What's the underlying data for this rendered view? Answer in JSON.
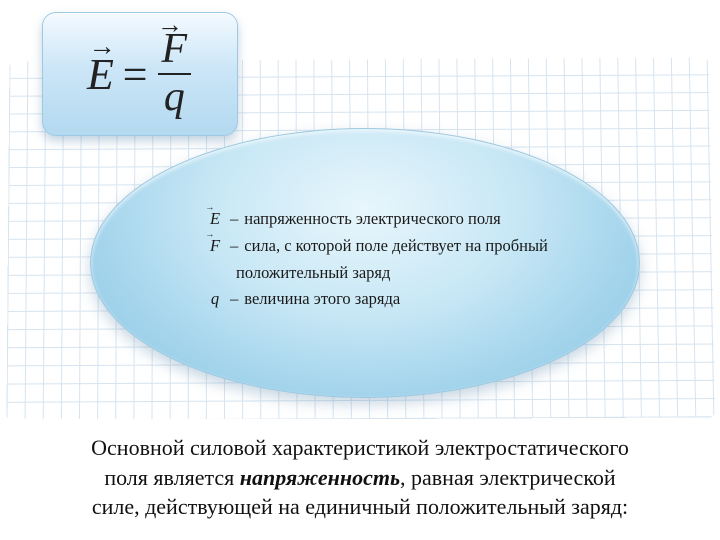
{
  "formula": {
    "lhs_symbol": "E",
    "equals": "=",
    "numerator_symbol": "F",
    "denominator_symbol": "q"
  },
  "definitions": {
    "e": {
      "symbol": "E",
      "text": "напряженность электрического поля"
    },
    "f": {
      "symbol": "F",
      "text_line1": "сила, с которой поле действует на пробный",
      "text_line2": "положительный заряд"
    },
    "q": {
      "symbol": "q",
      "text": "величина этого заряда"
    }
  },
  "caption": {
    "line1_pre": "Основной силовой характеристикой электростатического",
    "line2_pre": "поля является ",
    "emph": "напряженность",
    "line2_post": ", равная электрической",
    "line3": "силе, действующей на единичный положительный заряд:"
  },
  "colors": {
    "grid_line": "#d6e4f0",
    "box_gradient_top": "#f4faff",
    "box_gradient_bottom": "#b3d9f0",
    "ellipse_inner": "#e8f6fc",
    "ellipse_outer": "#8bc6e2",
    "text": "#111111"
  }
}
